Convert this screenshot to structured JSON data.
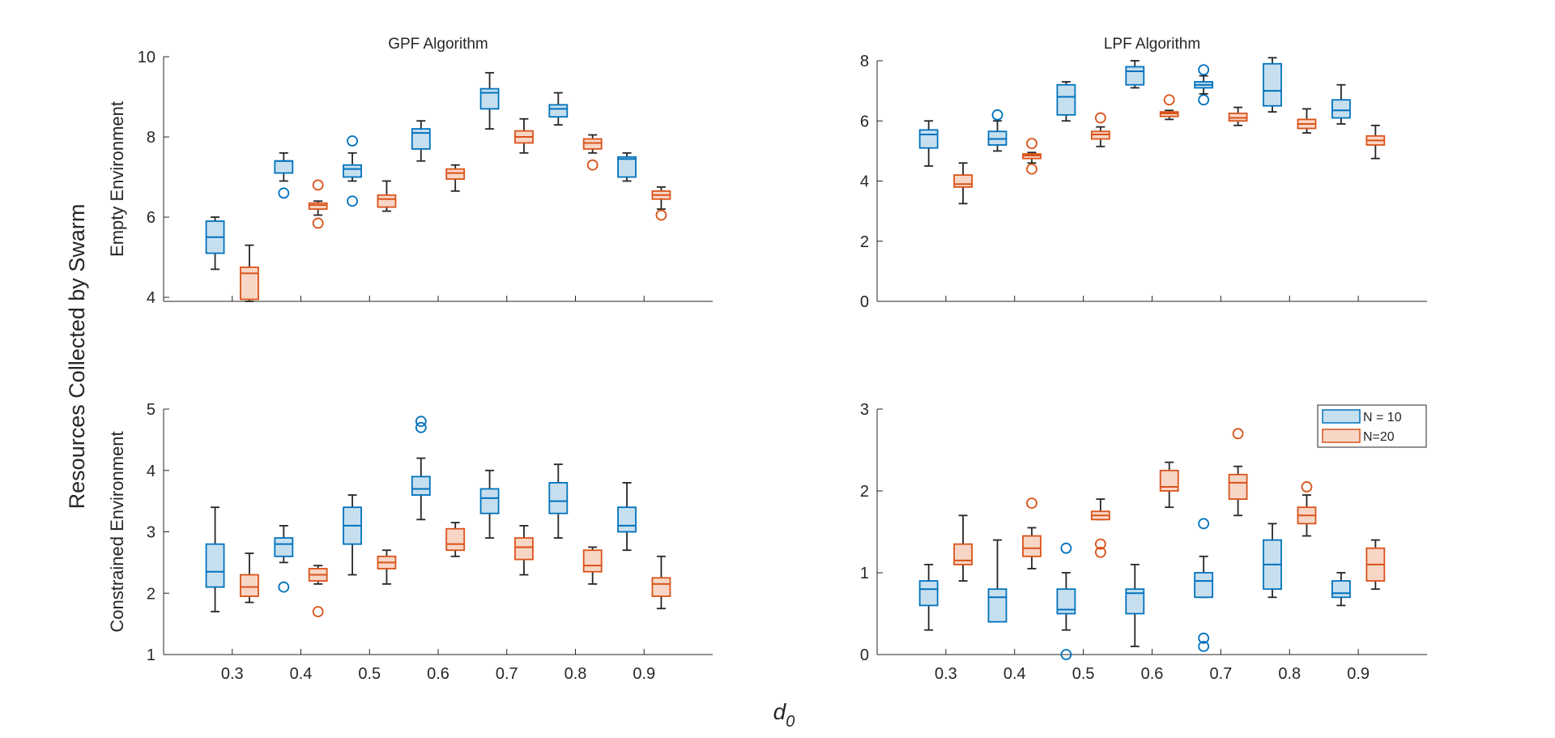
{
  "figure": {
    "ylabel": "Resources Collected by Swarm",
    "xlabel_main": "d",
    "xlabel_sub": "0",
    "row_labels": [
      "Empty Environment",
      "Constrained Environment"
    ]
  },
  "colors": {
    "n10_edge": "#0072BD",
    "n10_fill": "#C6DFEF",
    "n20_edge": "#D95319",
    "n20_fill": "#F8D6C6",
    "whisker": "#262626",
    "axis": "#262626"
  },
  "legend": {
    "entries": [
      "N = 10",
      "N=20"
    ]
  },
  "chart_data": [
    {
      "type": "box",
      "title": "GPF Algorithm",
      "xlabel": "",
      "ylabel": "Empty Environment",
      "xlim": [
        0.2,
        1.0
      ],
      "ylim": [
        3.9,
        10
      ],
      "xticks": [
        0.3,
        0.4,
        0.5,
        0.6,
        0.7,
        0.8,
        0.9
      ],
      "xtick_labels": [
        "0.3",
        "0.4",
        "0.5",
        "0.6",
        "0.7",
        "0.8",
        "0.9"
      ],
      "show_xticks": false,
      "yticks": [
        4,
        6,
        8,
        10
      ],
      "ytick_labels": [
        "4",
        "6",
        "8",
        "10"
      ],
      "series": [
        {
          "name": "N = 10",
          "boxes": [
            {
              "x": 0.275,
              "q1": 5.1,
              "median": 5.5,
              "q3": 5.9,
              "whisker_low": 4.7,
              "whisker_high": 6.0,
              "outliers": []
            },
            {
              "x": 0.375,
              "q1": 7.1,
              "median": 7.4,
              "q3": 7.4,
              "whisker_low": 6.9,
              "whisker_high": 7.6,
              "outliers": [
                6.6
              ]
            },
            {
              "x": 0.475,
              "q1": 7.0,
              "median": 7.2,
              "q3": 7.3,
              "whisker_low": 6.9,
              "whisker_high": 7.6,
              "outliers": [
                7.9,
                6.4
              ]
            },
            {
              "x": 0.575,
              "q1": 7.7,
              "median": 8.1,
              "q3": 8.2,
              "whisker_low": 7.4,
              "whisker_high": 8.4,
              "outliers": []
            },
            {
              "x": 0.675,
              "q1": 8.7,
              "median": 9.1,
              "q3": 9.2,
              "whisker_low": 8.2,
              "whisker_high": 9.6,
              "outliers": []
            },
            {
              "x": 0.775,
              "q1": 8.5,
              "median": 8.7,
              "q3": 8.8,
              "whisker_low": 8.3,
              "whisker_high": 9.1,
              "outliers": []
            },
            {
              "x": 0.875,
              "q1": 7.0,
              "median": 7.45,
              "q3": 7.5,
              "whisker_low": 6.9,
              "whisker_high": 7.6,
              "outliers": []
            }
          ]
        },
        {
          "name": "N=20",
          "boxes": [
            {
              "x": 0.325,
              "q1": 3.95,
              "median": 4.6,
              "q3": 4.75,
              "whisker_low": 3.9,
              "whisker_high": 5.3,
              "outliers": []
            },
            {
              "x": 0.425,
              "q1": 6.2,
              "median": 6.3,
              "q3": 6.35,
              "whisker_low": 6.05,
              "whisker_high": 6.4,
              "outliers": [
                6.8,
                5.85
              ]
            },
            {
              "x": 0.525,
              "q1": 6.25,
              "median": 6.45,
              "q3": 6.55,
              "whisker_low": 6.15,
              "whisker_high": 6.9,
              "outliers": []
            },
            {
              "x": 0.625,
              "q1": 6.95,
              "median": 7.1,
              "q3": 7.2,
              "whisker_low": 6.65,
              "whisker_high": 7.3,
              "outliers": []
            },
            {
              "x": 0.725,
              "q1": 7.85,
              "median": 8.0,
              "q3": 8.15,
              "whisker_low": 7.6,
              "whisker_high": 8.45,
              "outliers": []
            },
            {
              "x": 0.825,
              "q1": 7.7,
              "median": 7.85,
              "q3": 7.95,
              "whisker_low": 7.6,
              "whisker_high": 8.05,
              "outliers": [
                7.3
              ]
            },
            {
              "x": 0.925,
              "q1": 6.45,
              "median": 6.55,
              "q3": 6.65,
              "whisker_low": 6.2,
              "whisker_high": 6.75,
              "outliers": [
                6.05
              ]
            }
          ]
        }
      ]
    },
    {
      "type": "box",
      "title": "LPF Algorithm",
      "xlabel": "",
      "ylabel": "",
      "xlim": [
        0.2,
        1.0
      ],
      "ylim": [
        0,
        8
      ],
      "xticks": [
        0.3,
        0.4,
        0.5,
        0.6,
        0.7,
        0.8,
        0.9
      ],
      "xtick_labels": [
        "0.3",
        "0.4",
        "0.5",
        "0.6",
        "0.7",
        "0.8",
        "0.9"
      ],
      "show_xticks": false,
      "yticks": [
        0,
        2,
        4,
        6,
        8
      ],
      "ytick_labels": [
        "0",
        "2",
        "4",
        "6",
        "8"
      ],
      "series": [
        {
          "name": "N = 10",
          "boxes": [
            {
              "x": 0.275,
              "q1": 5.1,
              "median": 5.55,
              "q3": 5.7,
              "whisker_low": 4.5,
              "whisker_high": 6.0,
              "outliers": []
            },
            {
              "x": 0.375,
              "q1": 5.2,
              "median": 5.4,
              "q3": 5.65,
              "whisker_low": 5.0,
              "whisker_high": 6.0,
              "outliers": [
                6.2
              ]
            },
            {
              "x": 0.475,
              "q1": 6.2,
              "median": 6.8,
              "q3": 7.2,
              "whisker_low": 6.0,
              "whisker_high": 7.3,
              "outliers": []
            },
            {
              "x": 0.575,
              "q1": 7.2,
              "median": 7.65,
              "q3": 7.8,
              "whisker_low": 7.1,
              "whisker_high": 8.0,
              "outliers": []
            },
            {
              "x": 0.675,
              "q1": 7.1,
              "median": 7.2,
              "q3": 7.3,
              "whisker_low": 6.9,
              "whisker_high": 7.5,
              "outliers": [
                7.7,
                6.7
              ]
            },
            {
              "x": 0.775,
              "q1": 6.5,
              "median": 7.0,
              "q3": 7.9,
              "whisker_low": 6.3,
              "whisker_high": 8.1,
              "outliers": []
            },
            {
              "x": 0.875,
              "q1": 6.1,
              "median": 6.35,
              "q3": 6.7,
              "whisker_low": 5.9,
              "whisker_high": 7.2,
              "outliers": []
            }
          ]
        },
        {
          "name": "N=20",
          "boxes": [
            {
              "x": 0.325,
              "q1": 3.8,
              "median": 3.9,
              "q3": 4.2,
              "whisker_low": 3.25,
              "whisker_high": 4.6,
              "outliers": []
            },
            {
              "x": 0.425,
              "q1": 4.75,
              "median": 4.85,
              "q3": 4.9,
              "whisker_low": 4.6,
              "whisker_high": 4.95,
              "outliers": [
                5.25,
                4.4
              ]
            },
            {
              "x": 0.525,
              "q1": 5.4,
              "median": 5.55,
              "q3": 5.65,
              "whisker_low": 5.15,
              "whisker_high": 5.8,
              "outliers": [
                6.1
              ]
            },
            {
              "x": 0.625,
              "q1": 6.15,
              "median": 6.25,
              "q3": 6.3,
              "whisker_low": 6.05,
              "whisker_high": 6.35,
              "outliers": [
                6.7
              ]
            },
            {
              "x": 0.725,
              "q1": 6.0,
              "median": 6.1,
              "q3": 6.25,
              "whisker_low": 5.85,
              "whisker_high": 6.45,
              "outliers": []
            },
            {
              "x": 0.825,
              "q1": 5.75,
              "median": 5.9,
              "q3": 6.05,
              "whisker_low": 5.6,
              "whisker_high": 6.4,
              "outliers": []
            },
            {
              "x": 0.925,
              "q1": 5.2,
              "median": 5.35,
              "q3": 5.5,
              "whisker_low": 4.75,
              "whisker_high": 5.85,
              "outliers": []
            }
          ]
        }
      ]
    },
    {
      "type": "box",
      "title": "",
      "xlabel": "",
      "ylabel": "Constrained Environment",
      "xlim": [
        0.2,
        1.0
      ],
      "ylim": [
        1,
        5
      ],
      "xticks": [
        0.3,
        0.4,
        0.5,
        0.6,
        0.7,
        0.8,
        0.9
      ],
      "xtick_labels": [
        "0.3",
        "0.4",
        "0.5",
        "0.6",
        "0.7",
        "0.8",
        "0.9"
      ],
      "show_xticks": true,
      "yticks": [
        1,
        2,
        3,
        4,
        5
      ],
      "ytick_labels": [
        "1",
        "2",
        "3",
        "4",
        "5"
      ],
      "series": [
        {
          "name": "N = 10",
          "boxes": [
            {
              "x": 0.275,
              "q1": 2.1,
              "median": 2.35,
              "q3": 2.8,
              "whisker_low": 1.7,
              "whisker_high": 3.4,
              "outliers": []
            },
            {
              "x": 0.375,
              "q1": 2.6,
              "median": 2.8,
              "q3": 2.9,
              "whisker_low": 2.5,
              "whisker_high": 3.1,
              "outliers": [
                2.1
              ]
            },
            {
              "x": 0.475,
              "q1": 2.8,
              "median": 3.1,
              "q3": 3.4,
              "whisker_low": 2.3,
              "whisker_high": 3.6,
              "outliers": []
            },
            {
              "x": 0.575,
              "q1": 3.6,
              "median": 3.7,
              "q3": 3.9,
              "whisker_low": 3.2,
              "whisker_high": 4.2,
              "outliers": [
                4.8,
                4.7
              ]
            },
            {
              "x": 0.675,
              "q1": 3.3,
              "median": 3.55,
              "q3": 3.7,
              "whisker_low": 2.9,
              "whisker_high": 4.0,
              "outliers": []
            },
            {
              "x": 0.775,
              "q1": 3.3,
              "median": 3.5,
              "q3": 3.8,
              "whisker_low": 2.9,
              "whisker_high": 4.1,
              "outliers": []
            },
            {
              "x": 0.875,
              "q1": 3.0,
              "median": 3.1,
              "q3": 3.4,
              "whisker_low": 2.7,
              "whisker_high": 3.8,
              "outliers": []
            }
          ]
        },
        {
          "name": "N=20",
          "boxes": [
            {
              "x": 0.325,
              "q1": 1.95,
              "median": 2.1,
              "q3": 2.3,
              "whisker_low": 1.85,
              "whisker_high": 2.65,
              "outliers": []
            },
            {
              "x": 0.425,
              "q1": 2.2,
              "median": 2.3,
              "q3": 2.4,
              "whisker_low": 2.15,
              "whisker_high": 2.45,
              "outliers": [
                1.7
              ]
            },
            {
              "x": 0.525,
              "q1": 2.4,
              "median": 2.5,
              "q3": 2.6,
              "whisker_low": 2.15,
              "whisker_high": 2.7,
              "outliers": []
            },
            {
              "x": 0.625,
              "q1": 2.7,
              "median": 2.8,
              "q3": 3.05,
              "whisker_low": 2.6,
              "whisker_high": 3.15,
              "outliers": []
            },
            {
              "x": 0.725,
              "q1": 2.55,
              "median": 2.75,
              "q3": 2.9,
              "whisker_low": 2.3,
              "whisker_high": 3.1,
              "outliers": []
            },
            {
              "x": 0.825,
              "q1": 2.35,
              "median": 2.45,
              "q3": 2.7,
              "whisker_low": 2.15,
              "whisker_high": 2.75,
              "outliers": []
            },
            {
              "x": 0.925,
              "q1": 1.95,
              "median": 2.15,
              "q3": 2.25,
              "whisker_low": 1.75,
              "whisker_high": 2.6,
              "outliers": []
            }
          ]
        }
      ]
    },
    {
      "type": "box",
      "title": "",
      "xlabel": "",
      "ylabel": "",
      "xlim": [
        0.2,
        1.0
      ],
      "ylim": [
        0,
        3
      ],
      "xticks": [
        0.3,
        0.4,
        0.5,
        0.6,
        0.7,
        0.8,
        0.9
      ],
      "xtick_labels": [
        "0.3",
        "0.4",
        "0.5",
        "0.6",
        "0.7",
        "0.8",
        "0.9"
      ],
      "show_xticks": true,
      "yticks": [
        0,
        1,
        2,
        3
      ],
      "ytick_labels": [
        "0",
        "1",
        "2",
        "3"
      ],
      "legend": "top-right",
      "series": [
        {
          "name": "N = 10",
          "boxes": [
            {
              "x": 0.275,
              "q1": 0.6,
              "median": 0.8,
              "q3": 0.9,
              "whisker_low": 0.3,
              "whisker_high": 1.1,
              "outliers": []
            },
            {
              "x": 0.375,
              "q1": 0.4,
              "median": 0.7,
              "q3": 0.8,
              "whisker_low": 0.4,
              "whisker_high": 1.4,
              "outliers": []
            },
            {
              "x": 0.475,
              "q1": 0.5,
              "median": 0.55,
              "q3": 0.8,
              "whisker_low": 0.3,
              "whisker_high": 1.0,
              "outliers": [
                1.3,
                0.0
              ]
            },
            {
              "x": 0.575,
              "q1": 0.5,
              "median": 0.75,
              "q3": 0.8,
              "whisker_low": 0.1,
              "whisker_high": 1.1,
              "outliers": []
            },
            {
              "x": 0.675,
              "q1": 0.7,
              "median": 0.9,
              "q3": 1.0,
              "whisker_low": 0.7,
              "whisker_high": 1.2,
              "outliers": [
                1.6,
                0.2,
                0.1
              ]
            },
            {
              "x": 0.775,
              "q1": 0.8,
              "median": 1.1,
              "q3": 1.4,
              "whisker_low": 0.7,
              "whisker_high": 1.6,
              "outliers": []
            },
            {
              "x": 0.875,
              "q1": 0.7,
              "median": 0.75,
              "q3": 0.9,
              "whisker_low": 0.6,
              "whisker_high": 1.0,
              "outliers": []
            }
          ]
        },
        {
          "name": "N=20",
          "boxes": [
            {
              "x": 0.325,
              "q1": 1.1,
              "median": 1.15,
              "q3": 1.35,
              "whisker_low": 0.9,
              "whisker_high": 1.7,
              "outliers": []
            },
            {
              "x": 0.425,
              "q1": 1.2,
              "median": 1.3,
              "q3": 1.45,
              "whisker_low": 1.05,
              "whisker_high": 1.55,
              "outliers": [
                1.85
              ]
            },
            {
              "x": 0.525,
              "q1": 1.65,
              "median": 1.7,
              "q3": 1.75,
              "whisker_low": 1.65,
              "whisker_high": 1.9,
              "outliers": [
                1.35,
                1.25
              ]
            },
            {
              "x": 0.625,
              "q1": 2.0,
              "median": 2.05,
              "q3": 2.25,
              "whisker_low": 1.8,
              "whisker_high": 2.35,
              "outliers": []
            },
            {
              "x": 0.725,
              "q1": 1.9,
              "median": 2.1,
              "q3": 2.2,
              "whisker_low": 1.7,
              "whisker_high": 2.3,
              "outliers": [
                2.7
              ]
            },
            {
              "x": 0.825,
              "q1": 1.6,
              "median": 1.7,
              "q3": 1.8,
              "whisker_low": 1.45,
              "whisker_high": 1.95,
              "outliers": [
                2.05
              ]
            },
            {
              "x": 0.925,
              "q1": 0.9,
              "median": 1.1,
              "q3": 1.3,
              "whisker_low": 0.8,
              "whisker_high": 1.4,
              "outliers": []
            }
          ]
        }
      ]
    }
  ]
}
